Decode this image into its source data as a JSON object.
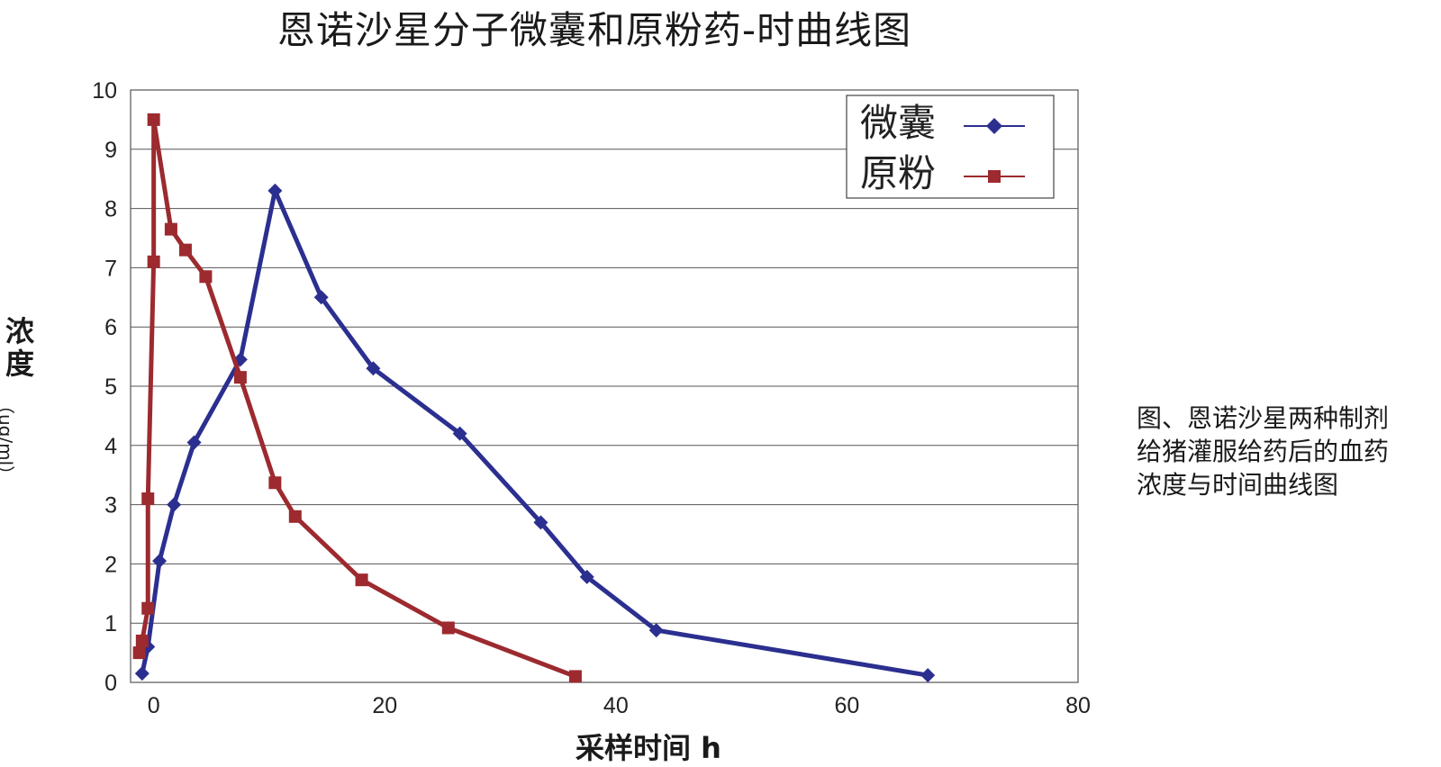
{
  "chart_data": {
    "type": "line",
    "title": "恩诺沙星分子微囊和原粉药-时曲线图",
    "ylabel": "浓度",
    "ylabel_unit": "（ug/ml）",
    "xlabel": "采样时间 h",
    "xlim": [
      -2,
      80
    ],
    "ylim": [
      0,
      10
    ],
    "x_ticks": [
      "0",
      "20",
      "40",
      "60",
      "80"
    ],
    "y_ticks": [
      "0",
      "1",
      "2",
      "3",
      "4",
      "5",
      "6",
      "7",
      "8",
      "9",
      "10"
    ],
    "grid": "horizontal",
    "legend_position": "top-right",
    "series": [
      {
        "name": "微囊",
        "color": "#2b2f8f",
        "marker": "diamond",
        "points": [
          [
            -1,
            0.15
          ],
          [
            -0.5,
            0.6
          ],
          [
            0.5,
            2.05
          ],
          [
            1.75,
            3.0
          ],
          [
            3.5,
            4.05
          ],
          [
            7.5,
            5.45
          ],
          [
            10.5,
            8.3
          ],
          [
            14.5,
            6.5
          ],
          [
            19,
            5.3
          ],
          [
            26.5,
            4.2
          ],
          [
            33.5,
            2.7
          ],
          [
            37.5,
            1.78
          ],
          [
            43.5,
            0.88
          ],
          [
            67,
            0.12
          ]
        ]
      },
      {
        "name": "原粉",
        "color": "#9c2a2f",
        "marker": "square",
        "points": [
          [
            -1.25,
            0.5
          ],
          [
            -1,
            0.7
          ],
          [
            -0.5,
            1.25
          ],
          [
            -0.5,
            3.1
          ],
          [
            0,
            7.1
          ],
          [
            0,
            9.5
          ],
          [
            1.5,
            7.65
          ],
          [
            2.75,
            7.3
          ],
          [
            4.5,
            6.85
          ],
          [
            7.5,
            5.15
          ],
          [
            10.5,
            3.37
          ],
          [
            12.25,
            2.8
          ],
          [
            18,
            1.73
          ],
          [
            25.5,
            0.92
          ],
          [
            36.5,
            0.1
          ]
        ]
      }
    ]
  },
  "caption": {
    "lines": [
      "图、恩诺沙星两种制剂",
      "给猪灌服给药后的血药",
      "浓度与时间曲线图"
    ]
  }
}
